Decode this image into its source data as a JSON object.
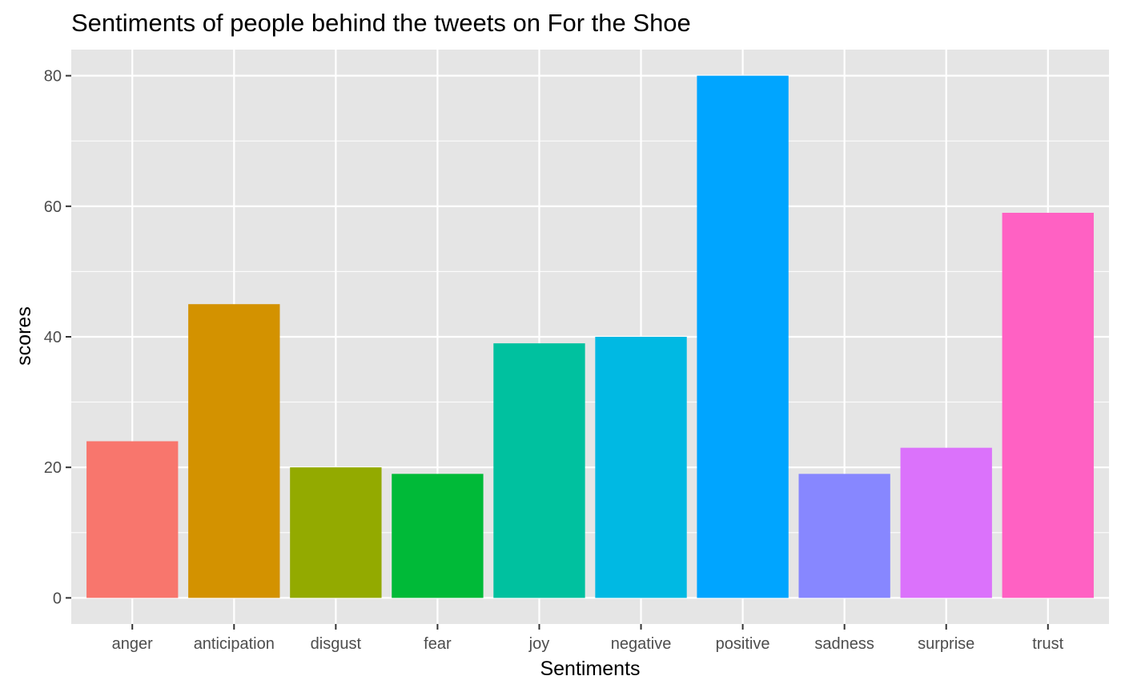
{
  "chart_data": {
    "type": "bar",
    "title": "Sentiments of people behind the tweets on For the Shoe",
    "xlabel": "Sentiments",
    "ylabel": "scores",
    "categories": [
      "anger",
      "anticipation",
      "disgust",
      "fear",
      "joy",
      "negative",
      "positive",
      "sadness",
      "surprise",
      "trust"
    ],
    "values": [
      24,
      45,
      20,
      19,
      39,
      40,
      80,
      19,
      23,
      59
    ],
    "colors": [
      "#F8766D",
      "#D39200",
      "#93AA00",
      "#00BA38",
      "#00C19F",
      "#00B9E3",
      "#00A5FF",
      "#8787FF",
      "#DB72FB",
      "#FF61C3"
    ],
    "ylim": [
      -4,
      84
    ],
    "yticks": [
      0,
      20,
      40,
      60,
      80
    ],
    "grid": true,
    "legend": "none",
    "panel_background": "#E5E5E5",
    "grid_color": "#FFFFFF"
  }
}
